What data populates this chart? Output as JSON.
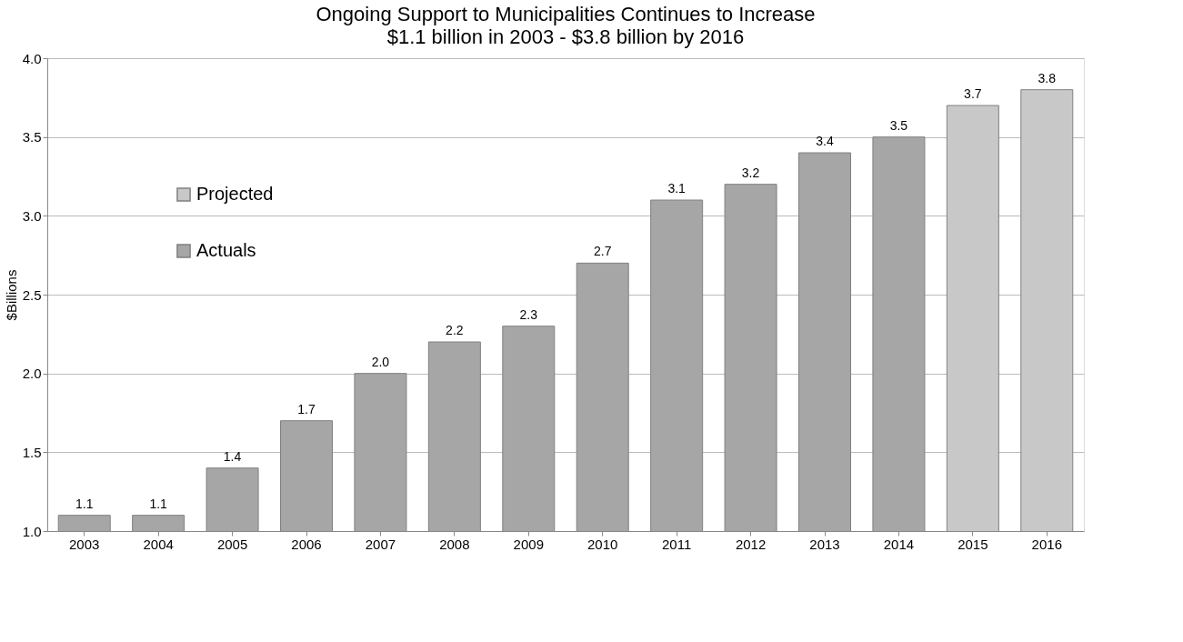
{
  "chart_data": {
    "type": "bar",
    "title": "Ongoing Support to Municipalities Continues to Increase",
    "subtitle": "$1.1 billion in 2003 - $3.8 billion by 2016",
    "ylabel": "$Billions",
    "categories": [
      "2003",
      "2004",
      "2005",
      "2006",
      "2007",
      "2008",
      "2009",
      "2010",
      "2011",
      "2012",
      "2013",
      "2014",
      "2015",
      "2016"
    ],
    "series": [
      {
        "name": "Projected",
        "color": "#c8c8c8",
        "values": [
          null,
          null,
          null,
          null,
          null,
          null,
          null,
          null,
          null,
          null,
          null,
          null,
          3.7,
          3.8
        ],
        "value_labels": [
          null,
          null,
          null,
          null,
          null,
          null,
          null,
          null,
          null,
          null,
          null,
          null,
          "3.7",
          "3.8"
        ]
      },
      {
        "name": "Actuals",
        "color": "#a6a6a6",
        "values": [
          1.1,
          1.1,
          1.4,
          1.7,
          2.0,
          2.2,
          2.3,
          2.7,
          3.1,
          3.2,
          3.4,
          3.5,
          null,
          null
        ],
        "value_labels": [
          "1.1",
          "1.1",
          "1.4",
          "1.7",
          "2.0",
          "2.2",
          "2.3",
          "2.7",
          "3.1",
          "3.2",
          "3.4",
          "3.5",
          null,
          null
        ]
      }
    ],
    "ylim": [
      1.0,
      4.0
    ],
    "yticks": [
      {
        "value": 1.0,
        "label": "1.0"
      },
      {
        "value": 1.5,
        "label": "1.5"
      },
      {
        "value": 2.0,
        "label": "2.0"
      },
      {
        "value": 2.5,
        "label": "2.5"
      },
      {
        "value": 3.0,
        "label": "3.0"
      },
      {
        "value": 3.5,
        "label": "3.5"
      },
      {
        "value": 4.0,
        "label": "4.0"
      }
    ],
    "grid": "y",
    "legend": "top left"
  }
}
